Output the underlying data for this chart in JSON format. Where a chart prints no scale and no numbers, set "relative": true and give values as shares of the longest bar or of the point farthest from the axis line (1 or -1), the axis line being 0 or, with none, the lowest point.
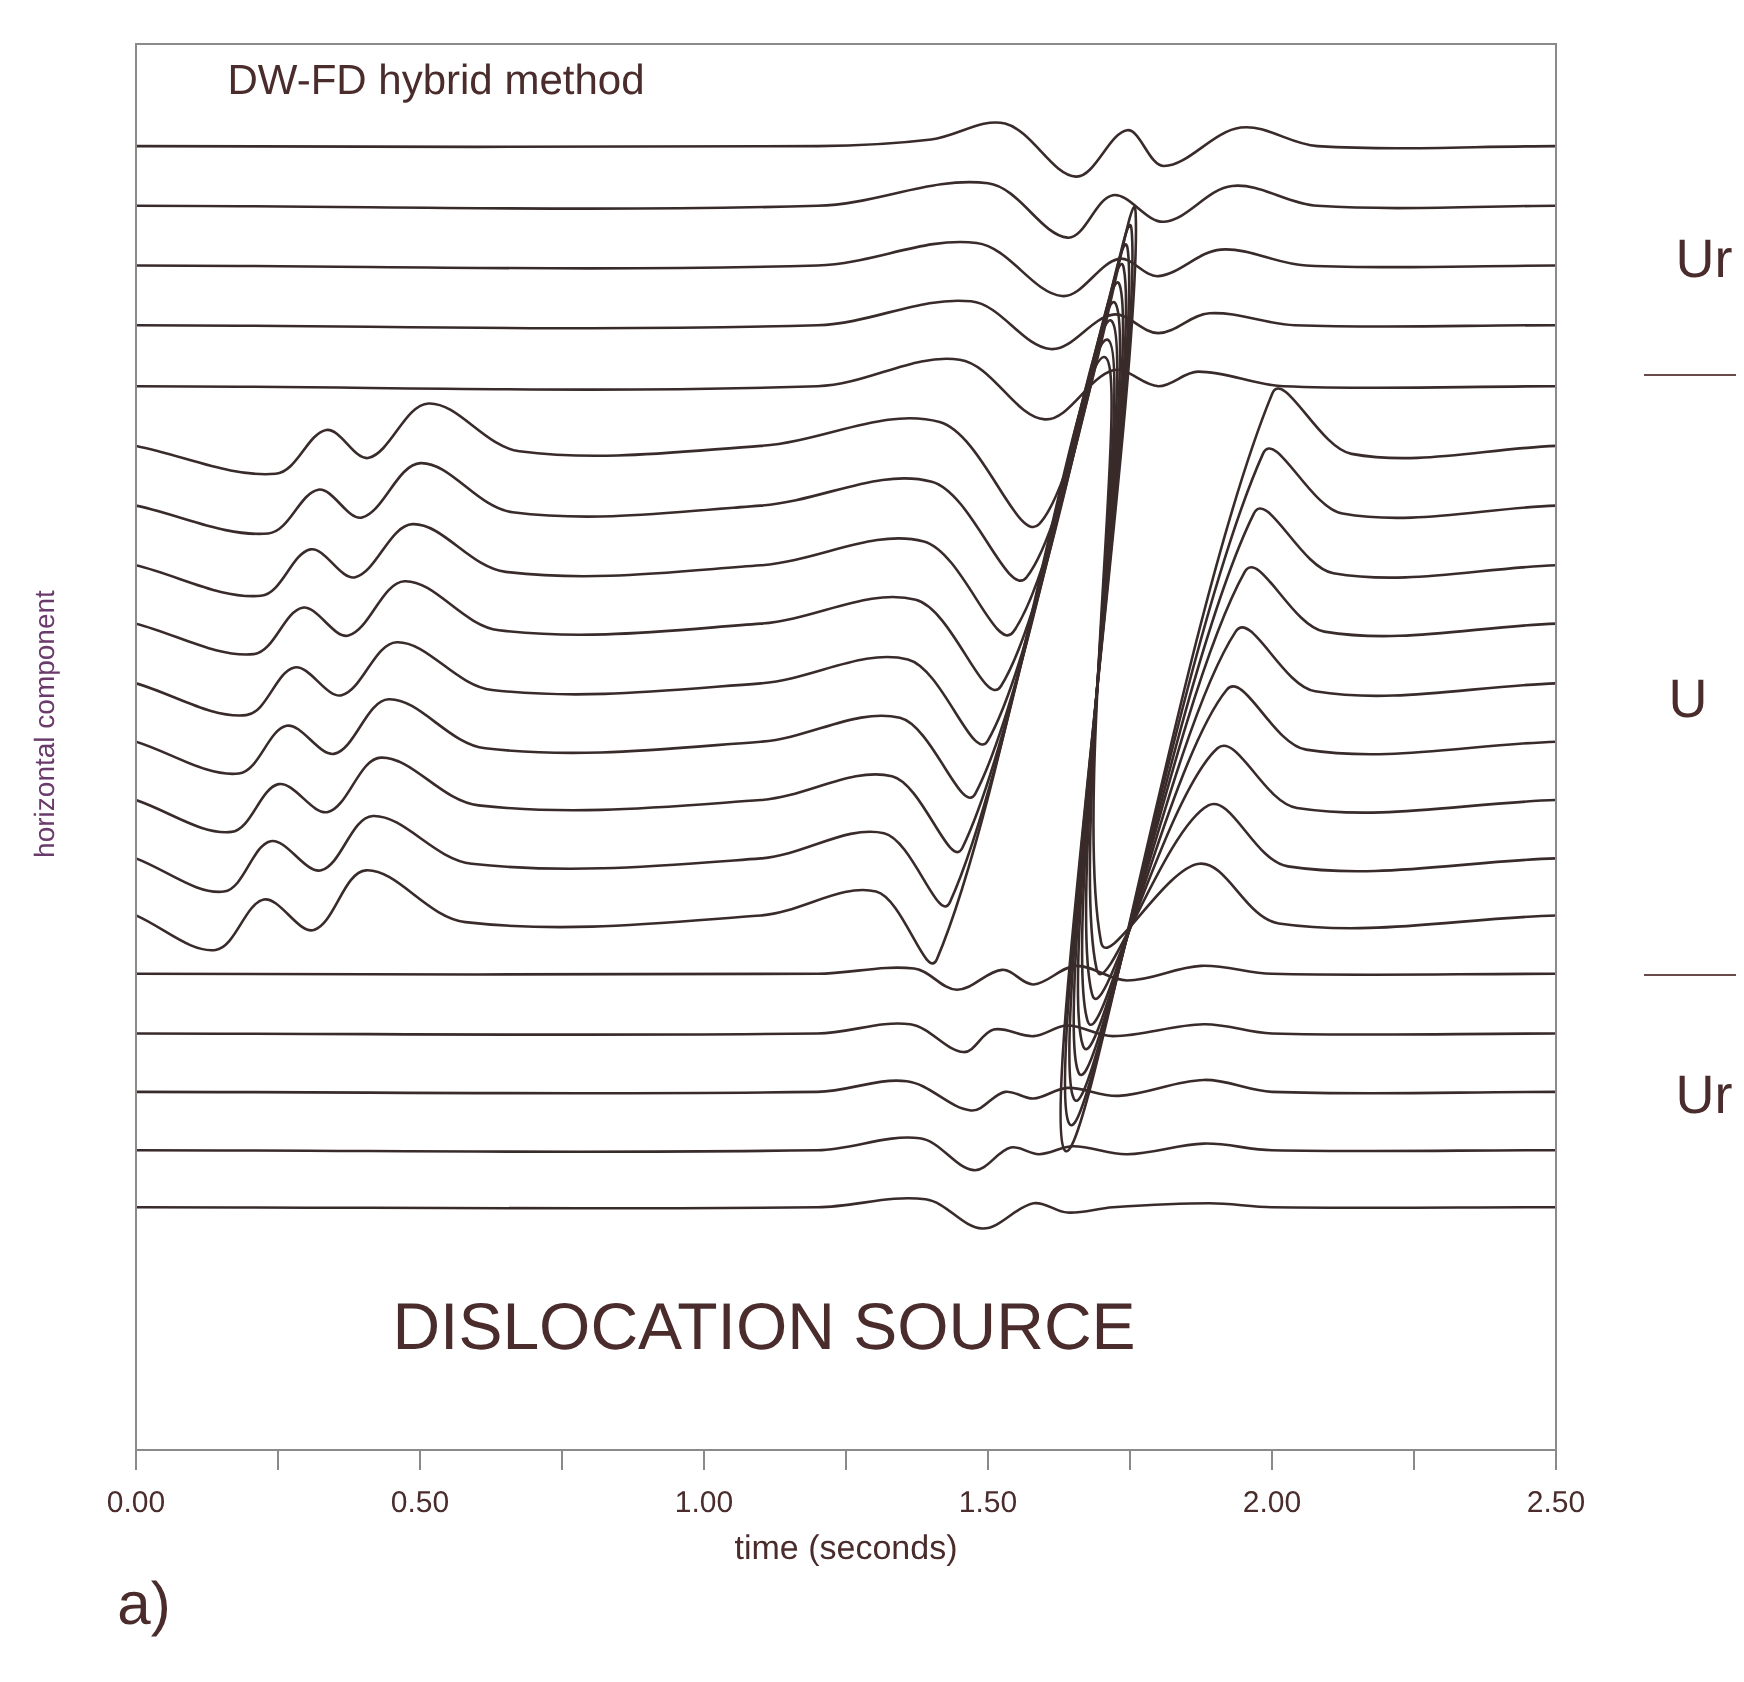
{
  "chart_data": {
    "type": "line",
    "relative": true,
    "title": "DW-FD hybrid method",
    "xlabel": "time (seconds)",
    "ylabel": "horizontal component",
    "annotations": [
      "Ur",
      "U",
      "Ur",
      "DISLOCATION SOURCE",
      "a)"
    ],
    "xlim": [
      0,
      2.5
    ],
    "xticks": [
      {
        "value": 0,
        "label": "0.00"
      },
      {
        "value": 0.25,
        "label": null
      },
      {
        "value": 0.5,
        "label": "0.50"
      },
      {
        "value": 0.75,
        "label": null
      },
      {
        "value": 1,
        "label": "1.00"
      },
      {
        "value": 1.25,
        "label": null
      },
      {
        "value": 1.5,
        "label": "1.50"
      },
      {
        "value": 1.75,
        "label": null
      },
      {
        "value": 2,
        "label": "2.00"
      },
      {
        "value": 2.25,
        "label": null
      },
      {
        "value": 2.5,
        "label": "2.50"
      }
    ],
    "tick_labels": "x",
    "grid": false,
    "legend": false,
    "marker": "none",
    "line_style": "solid",
    "series": [
      {
        "color": "#3a2b2b",
        "x": [
          0,
          1.2,
          1.4,
          1.53,
          1.655,
          1.745,
          1.81,
          1.945,
          2.08,
          2.5
        ],
        "values": [
          0.983,
          0.983,
          0.988,
          1.0,
          0.96,
          0.995,
          0.968,
          0.997,
          0.983,
          0.983
        ]
      },
      {
        "color": "#3a2b2b",
        "x": [
          0,
          1.2,
          1.5,
          1.64,
          1.72,
          1.81,
          1.93,
          2.08,
          2.5
        ],
        "values": [
          0.938,
          0.938,
          0.955,
          0.914,
          0.946,
          0.926,
          0.953,
          0.938,
          0.938
        ]
      },
      {
        "color": "#3a2b2b",
        "x": [
          0,
          1.2,
          1.48,
          1.63,
          1.73,
          1.8,
          1.91,
          2.06,
          2.5
        ],
        "values": [
          0.893,
          0.893,
          0.91,
          0.87,
          0.898,
          0.885,
          0.905,
          0.893,
          0.893
        ]
      },
      {
        "color": "#3a2b2b",
        "x": [
          0,
          1.2,
          1.47,
          1.61,
          1.72,
          1.8,
          1.89,
          2.04,
          2.5
        ],
        "values": [
          0.848,
          0.848,
          0.866,
          0.83,
          0.856,
          0.842,
          0.857,
          0.848,
          0.848
        ]
      },
      {
        "color": "#3a2b2b",
        "x": [
          0,
          1.2,
          1.45,
          1.6,
          1.72,
          1.8,
          1.87,
          2.02,
          2.5
        ],
        "values": [
          0.802,
          0.802,
          0.822,
          0.777,
          0.814,
          0.802,
          0.813,
          0.802,
          0.802
        ]
      },
      {
        "color": "#3a2b2b",
        "x": [
          0,
          0.246,
          0.335,
          0.41,
          0.515,
          0.675,
          1.1,
          1.415,
          1.59,
          1.76,
          1.635,
          2.0,
          2.14,
          2.5
        ],
        "values": [
          0.757,
          0.736,
          0.769,
          0.748,
          0.789,
          0.753,
          0.757,
          0.775,
          0.698,
          0.932,
          0.226,
          0.796,
          0.751,
          0.757
        ]
      },
      {
        "color": "#3a2b2b",
        "x": [
          0,
          0.233,
          0.321,
          0.398,
          0.501,
          0.663,
          1.1,
          1.401,
          1.568,
          1.753,
          1.643,
          1.984,
          2.124,
          2.5
        ],
        "values": [
          0.712,
          0.691,
          0.724,
          0.703,
          0.744,
          0.707,
          0.712,
          0.73,
          0.658,
          0.919,
          0.246,
          0.751,
          0.706,
          0.712
        ]
      },
      {
        "color": "#3a2b2b",
        "x": [
          0,
          0.22,
          0.307,
          0.386,
          0.487,
          0.651,
          1.1,
          1.387,
          1.545,
          1.746,
          1.651,
          1.968,
          2.108,
          2.5
        ],
        "values": [
          0.667,
          0.644,
          0.679,
          0.658,
          0.698,
          0.662,
          0.667,
          0.685,
          0.617,
          0.905,
          0.265,
          0.706,
          0.661,
          0.667
        ]
      },
      {
        "color": "#3a2b2b",
        "x": [
          0,
          0.207,
          0.293,
          0.374,
          0.473,
          0.639,
          1.1,
          1.373,
          1.523,
          1.739,
          1.659,
          1.952,
          2.092,
          2.5
        ],
        "values": [
          0.623,
          0.6,
          0.635,
          0.614,
          0.655,
          0.618,
          0.623,
          0.641,
          0.576,
          0.891,
          0.285,
          0.662,
          0.617,
          0.623
        ]
      },
      {
        "color": "#3a2b2b",
        "x": [
          0,
          0.194,
          0.279,
          0.362,
          0.459,
          0.627,
          1.1,
          1.359,
          1.5,
          1.732,
          1.667,
          1.936,
          2.076,
          2.5
        ],
        "values": [
          0.578,
          0.554,
          0.59,
          0.569,
          0.609,
          0.573,
          0.578,
          0.596,
          0.535,
          0.878,
          0.305,
          0.617,
          0.572,
          0.578
        ]
      },
      {
        "color": "#3a2b2b",
        "x": [
          0,
          0.181,
          0.265,
          0.35,
          0.445,
          0.615,
          1.1,
          1.345,
          1.478,
          1.725,
          1.675,
          1.92,
          2.06,
          2.5
        ],
        "values": [
          0.534,
          0.51,
          0.546,
          0.525,
          0.566,
          0.529,
          0.534,
          0.552,
          0.495,
          0.864,
          0.324,
          0.573,
          0.528,
          0.534
        ]
      },
      {
        "color": "#3a2b2b",
        "x": [
          0,
          0.168,
          0.251,
          0.338,
          0.431,
          0.603,
          1.1,
          1.331,
          1.455,
          1.718,
          1.683,
          1.904,
          2.044,
          2.5
        ],
        "values": [
          0.49,
          0.466,
          0.502,
          0.481,
          0.522,
          0.486,
          0.49,
          0.508,
          0.454,
          0.851,
          0.344,
          0.529,
          0.484,
          0.49
        ]
      },
      {
        "color": "#3a2b2b",
        "x": [
          0,
          0.155,
          0.237,
          0.326,
          0.417,
          0.591,
          1.1,
          1.317,
          1.433,
          1.711,
          1.691,
          1.888,
          2.028,
          2.5
        ],
        "values": [
          0.446,
          0.421,
          0.459,
          0.437,
          0.478,
          0.442,
          0.446,
          0.465,
          0.413,
          0.837,
          0.363,
          0.486,
          0.44,
          0.446
        ]
      },
      {
        "color": "#3a2b2b",
        "x": [
          0,
          0.14,
          0.225,
          0.313,
          0.405,
          0.58,
          1.1,
          1.303,
          1.41,
          1.704,
          1.699,
          1.872,
          2.012,
          2.5
        ],
        "values": [
          0.403,
          0.377,
          0.415,
          0.392,
          0.437,
          0.398,
          0.403,
          0.421,
          0.37,
          0.824,
          0.383,
          0.442,
          0.397,
          0.403
        ]
      },
      {
        "color": "#3a2b2b",
        "x": [
          0,
          1.2,
          1.37,
          1.445,
          1.525,
          1.58,
          1.655,
          1.745,
          1.875,
          2.0,
          2.5
        ],
        "values": [
          0.359,
          0.359,
          0.363,
          0.347,
          0.362,
          0.351,
          0.365,
          0.354,
          0.365,
          0.359,
          0.359
        ]
      },
      {
        "color": "#3a2b2b",
        "x": [
          0,
          1.2,
          1.363,
          1.457,
          1.51,
          1.58,
          1.64,
          1.72,
          1.88,
          2.0,
          2.5
        ],
        "values": [
          0.314,
          0.314,
          0.321,
          0.3,
          0.317,
          0.312,
          0.32,
          0.312,
          0.321,
          0.314,
          0.314
        ]
      },
      {
        "color": "#3a2b2b",
        "x": [
          0,
          1.2,
          1.357,
          1.47,
          1.53,
          1.58,
          1.64,
          1.73,
          1.88,
          2.0,
          2.5
        ],
        "values": [
          0.27,
          0.27,
          0.278,
          0.256,
          0.27,
          0.265,
          0.273,
          0.267,
          0.279,
          0.27,
          0.27
        ]
      },
      {
        "color": "#3a2b2b",
        "x": [
          0,
          1.2,
          1.38,
          1.475,
          1.54,
          1.59,
          1.65,
          1.745,
          1.88,
          2.0,
          2.5
        ],
        "values": [
          0.226,
          0.226,
          0.235,
          0.211,
          0.228,
          0.223,
          0.229,
          0.223,
          0.231,
          0.226,
          0.226
        ]
      },
      {
        "color": "#3a2b2b",
        "x": [
          0,
          1.2,
          1.39,
          1.49,
          1.58,
          1.64,
          1.72,
          1.89,
          2.0,
          2.5
        ],
        "values": [
          0.183,
          0.183,
          0.189,
          0.167,
          0.186,
          0.179,
          0.183,
          0.186,
          0.183,
          0.183
        ]
      }
    ]
  }
}
